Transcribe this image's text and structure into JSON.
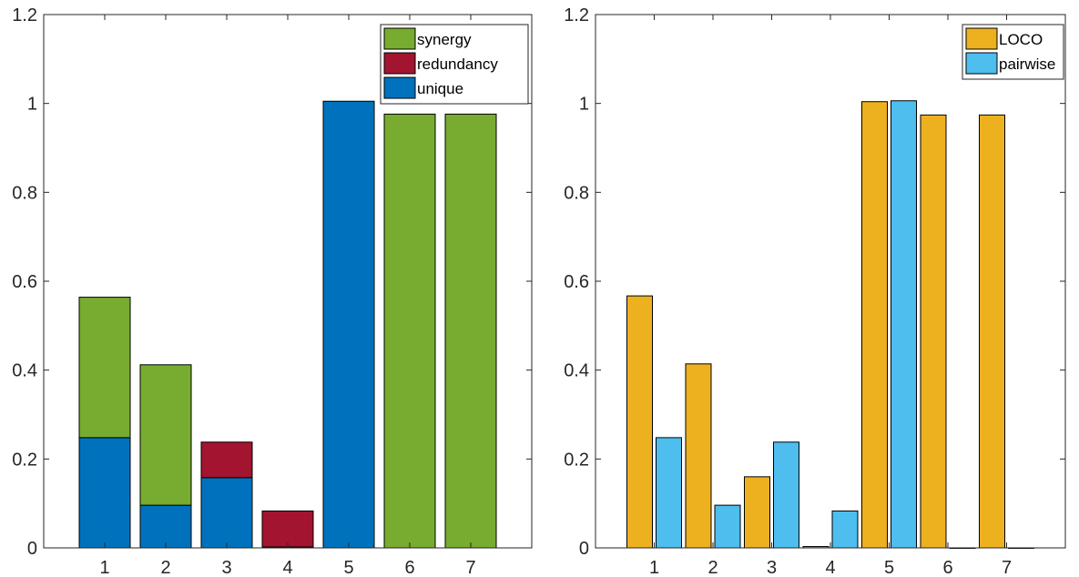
{
  "chart_data": [
    {
      "type": "bar",
      "stacked": true,
      "categories": [
        "1",
        "2",
        "3",
        "4",
        "5",
        "6",
        "7"
      ],
      "series": [
        {
          "name": "unique",
          "color": "#0072BD",
          "values": [
            0.248,
            0.096,
            0.158,
            0.002,
            1.005,
            0.0,
            0.0
          ]
        },
        {
          "name": "redundancy",
          "color": "#A2142F",
          "values": [
            0.0,
            0.0,
            0.08,
            0.081,
            0.0,
            0.0,
            0.0
          ]
        },
        {
          "name": "synergy",
          "color": "#77AC30",
          "values": [
            0.316,
            0.316,
            0.0,
            0.0,
            0.0,
            0.976,
            0.976
          ]
        }
      ],
      "ylim": [
        0,
        1.2
      ],
      "yticks": [
        "0",
        "0.2",
        "0.4",
        "0.6",
        "0.8",
        "1",
        "1.2"
      ],
      "xticks": [
        "1",
        "2",
        "3",
        "4",
        "5",
        "6",
        "7"
      ],
      "legend": {
        "placement": "top-right",
        "entries": [
          "synergy",
          "redundancy",
          "unique"
        ]
      },
      "grid": false
    },
    {
      "type": "bar",
      "stacked": false,
      "categories": [
        "1",
        "2",
        "3",
        "4",
        "5",
        "6",
        "7"
      ],
      "series": [
        {
          "name": "LOCO",
          "color": "#EDB120",
          "values": [
            0.567,
            0.414,
            0.16,
            0.003,
            1.004,
            0.974,
            0.974
          ]
        },
        {
          "name": "pairwise",
          "color": "#4DBEEE",
          "values": [
            0.248,
            0.096,
            0.238,
            0.083,
            1.006,
            0.0,
            0.0
          ]
        }
      ],
      "ylim": [
        0,
        1.2
      ],
      "yticks": [
        "0",
        "0.2",
        "0.4",
        "0.6",
        "0.8",
        "1",
        "1.2"
      ],
      "xticks": [
        "1",
        "2",
        "3",
        "4",
        "5",
        "6",
        "7"
      ],
      "legend": {
        "placement": "top-right",
        "entries": [
          "LOCO",
          "pairwise"
        ]
      },
      "grid": false
    }
  ]
}
